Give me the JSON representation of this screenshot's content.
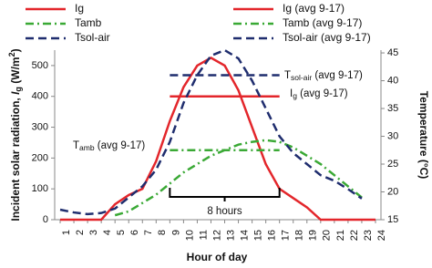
{
  "chart_data": {
    "type": "line",
    "x": [
      1,
      2,
      3,
      4,
      5,
      6,
      7,
      8,
      9,
      10,
      11,
      12,
      13,
      14,
      15,
      16,
      17,
      18,
      19,
      20,
      21,
      22,
      23,
      24
    ],
    "xlim": [
      0.6,
      24.4
    ],
    "xticks": [
      1,
      2,
      3,
      4,
      5,
      6,
      7,
      8,
      9,
      10,
      11,
      12,
      13,
      14,
      15,
      16,
      17,
      18,
      19,
      20,
      21,
      22,
      23,
      24
    ],
    "xlabel": "Hour of day",
    "ylabel": [
      "Incident solar radiation, ",
      "I",
      "g",
      " (W/m",
      "2",
      ")"
    ],
    "y2label": "Temperature (°C)",
    "ylim": [
      0,
      550
    ],
    "yticks": [
      0,
      100,
      200,
      300,
      400,
      500
    ],
    "y2lim": [
      15,
      45.5
    ],
    "y2ticks": [
      15,
      20,
      25,
      30,
      35,
      40,
      45
    ],
    "grid": false,
    "series": [
      {
        "name": "Ig",
        "color": "#e3262b",
        "style": "solid",
        "values": [
          0,
          0,
          0,
          0,
          50,
          80,
          100,
          190,
          320,
          430,
          500,
          525,
          500,
          420,
          300,
          180,
          100,
          70,
          40,
          0,
          0,
          0,
          0,
          0
        ]
      },
      {
        "name": "Ig (avg 9-17)",
        "color": "#e3262b",
        "style": "solid",
        "values": [
          null,
          null,
          null,
          null,
          null,
          null,
          null,
          null,
          400,
          400,
          400,
          400,
          400,
          400,
          400,
          400,
          400,
          null,
          null,
          null,
          null,
          null,
          null,
          null
        ]
      },
      {
        "name": "Tamb",
        "color": "#3aa935",
        "style": "dashdot",
        "axis": "y2",
        "values": [
          null,
          null,
          null,
          null,
          15.8,
          16.5,
          18,
          19.5,
          21.5,
          23.5,
          25,
          26.5,
          27.5,
          28.5,
          29,
          29.3,
          29,
          28,
          26.5,
          25,
          23,
          21,
          19,
          null
        ]
      },
      {
        "name": "Tamb (avg 9-17)",
        "color": "#3aa935",
        "style": "dashdot",
        "axis": "y2",
        "values": [
          null,
          null,
          null,
          null,
          null,
          null,
          null,
          null,
          27.5,
          27.5,
          27.5,
          27.5,
          27.5,
          27.5,
          27.5,
          27.5,
          27.5,
          null,
          null,
          null,
          null,
          null,
          null,
          null
        ]
      },
      {
        "name": "Tsol-air",
        "color": "#1f2d6e",
        "style": "dashed",
        "axis": "y2",
        "values": [
          16.8,
          16.3,
          16,
          16.2,
          17,
          19,
          21,
          24,
          29,
          36,
          41,
          44.5,
          45.5,
          44,
          40,
          35,
          30,
          27,
          25,
          23,
          22,
          20.5,
          18.8,
          null
        ]
      },
      {
        "name": "Tsol-air (avg 9-17)",
        "color": "#1f2d6e",
        "style": "dashed",
        "axis": "y2",
        "values": [
          null,
          null,
          null,
          null,
          null,
          null,
          null,
          null,
          41,
          41,
          41,
          41,
          41,
          41,
          41,
          41,
          41,
          null,
          null,
          null,
          null,
          null,
          null,
          null
        ]
      }
    ],
    "annotations": [
      {
        "main": "T",
        "sub": "sol-air",
        "rest": " (avg 9-17)"
      },
      {
        "main": "I",
        "sub": "g",
        "rest": " (avg 9-17)"
      },
      {
        "main": "T",
        "sub": "amb",
        "rest": " (avg 9-17)"
      },
      {
        "main": "8 hours"
      }
    ]
  }
}
